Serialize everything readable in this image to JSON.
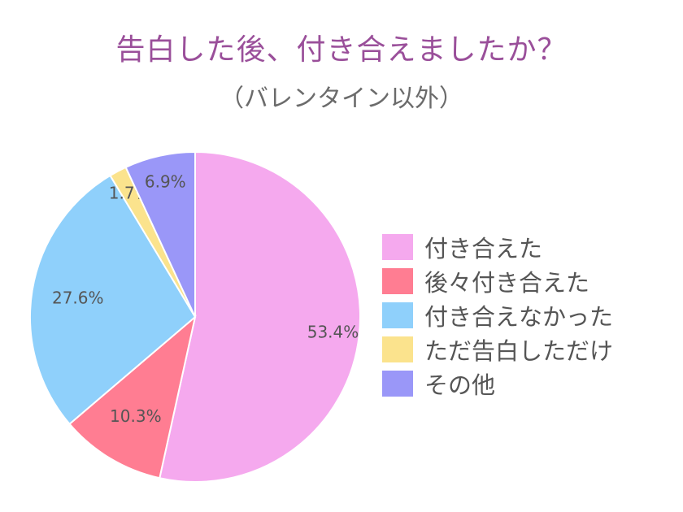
{
  "chart_data": {
    "type": "pie",
    "title": "告白した後、付き合えましたか？",
    "subtitle": "（バレンタイン以外）",
    "legend_position": "right",
    "slices": [
      {
        "label": "付き合えた",
        "value": 53.4,
        "value_label": "53.4%",
        "color": "#f5a9ee"
      },
      {
        "label": "後々付き合えた",
        "value": 10.3,
        "value_label": "10.3%",
        "color": "#ff7d92"
      },
      {
        "label": "付き合えなかった",
        "value": 27.6,
        "value_label": "27.6%",
        "color": "#8fd0fb"
      },
      {
        "label": "ただ告白しただけ",
        "value": 1.7,
        "value_label": "1.7%",
        "color": "#fbe38d"
      },
      {
        "label": "その他",
        "value": 6.9,
        "value_label": "6.9%",
        "color": "#9a97f8"
      }
    ]
  }
}
